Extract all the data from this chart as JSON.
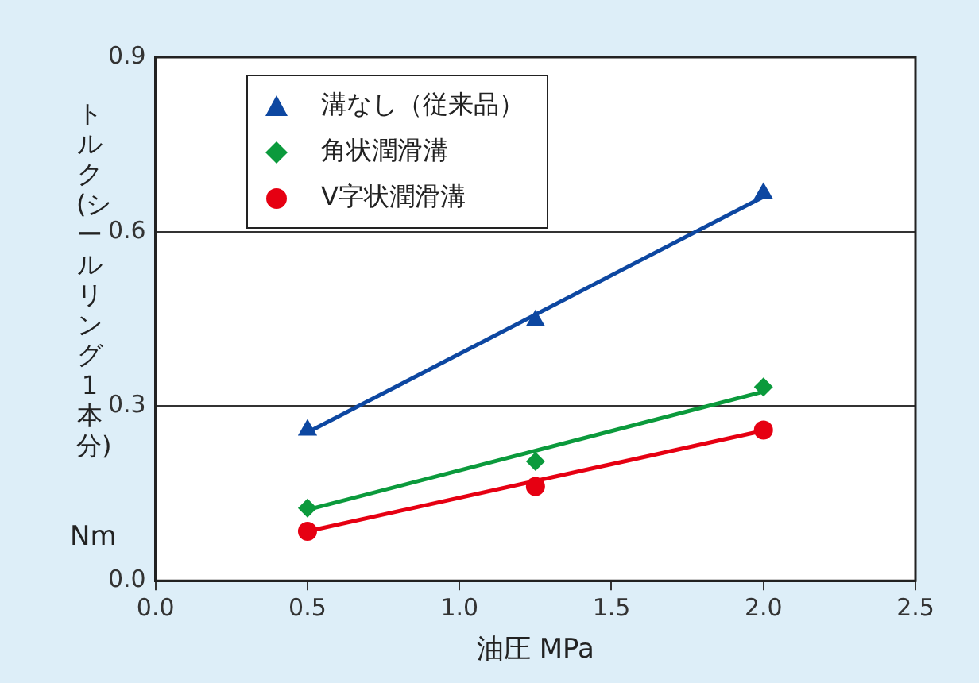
{
  "chart_data": {
    "type": "scatter",
    "xlabel": "油圧 MPa",
    "ylabel": "トルク(シールリング1本分)",
    "annotations": [
      "Nm"
    ],
    "xlim": [
      0,
      2.5
    ],
    "xticks": [
      {
        "value": 0,
        "label": "0.0"
      },
      {
        "value": 0.5,
        "label": "0.5"
      },
      {
        "value": 1,
        "label": "1.0"
      },
      {
        "value": 1.5,
        "label": "1.5"
      },
      {
        "value": 2,
        "label": "2.0"
      },
      {
        "value": 2.5,
        "label": "2.5"
      }
    ],
    "ylim": [
      0,
      0.9
    ],
    "yticks": [
      {
        "value": 0,
        "label": "0.0"
      },
      {
        "value": 0.3,
        "label": "0.3"
      },
      {
        "value": 0.6,
        "label": "0.6"
      },
      {
        "value": 0.9,
        "label": "0.9"
      }
    ],
    "grid": "y",
    "legend": "top left",
    "series": [
      {
        "name": "溝なし（従来品）",
        "color": "#0d47a1",
        "marker": "triangle",
        "x": [
          0.5,
          1.25,
          2.0
        ],
        "values": [
          0.259,
          0.447,
          0.666
        ]
      },
      {
        "name": "角状潤滑溝",
        "color": "#0b9a3c",
        "marker": "diamond",
        "x": [
          0.5,
          1.25,
          2.0
        ],
        "values": [
          0.125,
          0.205,
          0.333
        ]
      },
      {
        "name": "V字状潤滑溝",
        "color": "#e60012",
        "marker": "circle",
        "x": [
          0.5,
          1.25,
          2.0
        ],
        "values": [
          0.085,
          0.162,
          0.259
        ]
      },
      {
        "type": "line",
        "color": "#0d47a1",
        "marker": "none",
        "x": [
          0.5,
          2.0
        ],
        "values": [
          0.255,
          0.66
        ]
      },
      {
        "type": "line",
        "color": "#0b9a3c",
        "marker": "none",
        "x": [
          0.5,
          2.0
        ],
        "values": [
          0.122,
          0.325
        ]
      },
      {
        "type": "line",
        "color": "#e60012",
        "marker": "none",
        "x": [
          0.5,
          2.0
        ],
        "values": [
          0.085,
          0.258
        ]
      }
    ]
  }
}
